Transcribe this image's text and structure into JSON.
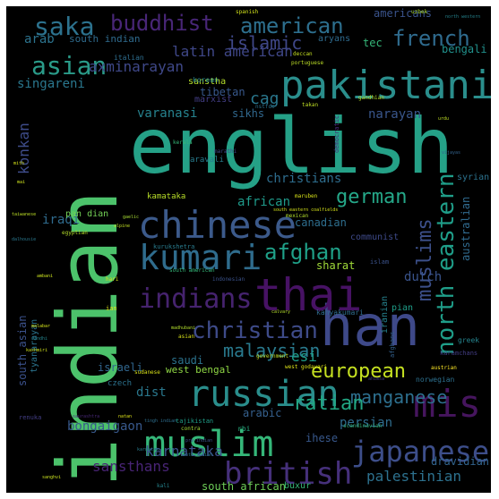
{
  "word_cloud": {
    "words": [
      {
        "text": "english",
        "color": "#25a187"
      },
      {
        "text": "indian",
        "color": "#4cc26b"
      },
      {
        "text": "pakistani",
        "color": "#2a8e8c"
      },
      {
        "text": "han",
        "color": "#3e4989"
      },
      {
        "text": "thai",
        "color": "#471264"
      },
      {
        "text": "chinese",
        "color": "#3c5a8b"
      },
      {
        "text": "kumari",
        "color": "#2f6c8d"
      },
      {
        "text": "russian",
        "color": "#2a8e8c"
      },
      {
        "text": "muslim",
        "color": "#35b779"
      },
      {
        "text": "british",
        "color": "#46307b"
      },
      {
        "text": "japanese",
        "color": "#3d4e8a"
      },
      {
        "text": "mis",
        "color": "#46155e"
      },
      {
        "text": "indians",
        "color": "#46236f"
      },
      {
        "text": "christian",
        "color": "#3e4b89"
      },
      {
        "text": "european",
        "color": "#c5e021"
      },
      {
        "text": "american",
        "color": "#2d6f8e"
      },
      {
        "text": "buddhist",
        "color": "#482677"
      },
      {
        "text": "asian",
        "color": "#2a9b89"
      },
      {
        "text": "saka",
        "color": "#2c728e"
      },
      {
        "text": "french",
        "color": "#2f6b8e"
      },
      {
        "text": "islamic",
        "color": "#3f4788"
      },
      {
        "text": "german",
        "color": "#25a889"
      },
      {
        "text": "afghan",
        "color": "#1fa088"
      },
      {
        "text": "muslims",
        "color": "#3c4f8a"
      },
      {
        "text": "north eastern",
        "color": "#1f9e89"
      },
      {
        "text": "malaysian",
        "color": "#297a8e"
      },
      {
        "text": "manganese",
        "color": "#2d6f8e"
      },
      {
        "text": "ratian",
        "color": "#22a884"
      },
      {
        "text": "karnataka",
        "color": "#3b528b"
      },
      {
        "text": "sansthans",
        "color": "#482475"
      },
      {
        "text": "south african",
        "color": "#6ece58"
      },
      {
        "text": "palestinian",
        "color": "#2d718e"
      },
      {
        "text": "dravidian",
        "color": "#32648e"
      },
      {
        "text": "axminarayan",
        "color": "#3f4889"
      },
      {
        "text": "latin american",
        "color": "#3f4788"
      },
      {
        "text": "arab",
        "color": "#2c738e"
      },
      {
        "text": "south indian",
        "color": "#2f6b8e"
      },
      {
        "text": "singareni",
        "color": "#2a778e"
      },
      {
        "text": "konkan",
        "color": "#3e4c8a"
      },
      {
        "text": "varanasi",
        "color": "#26828e"
      },
      {
        "text": "cag",
        "color": "#2a788e"
      },
      {
        "text": "christians",
        "color": "#2e6d8e"
      },
      {
        "text": "tibetan",
        "color": "#38588c"
      },
      {
        "text": "sikhs",
        "color": "#31688e"
      },
      {
        "text": "narayan",
        "color": "#39568c"
      },
      {
        "text": "dutch",
        "color": "#3a548c"
      },
      {
        "text": "iraqi",
        "color": "#2f6b8e"
      },
      {
        "text": "african",
        "color": "#1f9a8a"
      },
      {
        "text": "canadian",
        "color": "#2e6e8e"
      },
      {
        "text": "australian",
        "color": "#306a8e"
      },
      {
        "text": "bengali",
        "color": "#21918c"
      },
      {
        "text": "americans",
        "color": "#3a538b"
      },
      {
        "text": "tec",
        "color": "#35b779"
      },
      {
        "text": "aryans",
        "color": "#2f6b8e"
      },
      {
        "text": "sharat",
        "color": "#a0da39"
      },
      {
        "text": "communist",
        "color": "#3e4a89"
      },
      {
        "text": "iranian",
        "color": "#26828e"
      },
      {
        "text": "esi",
        "color": "#1f9e89"
      },
      {
        "text": "saudi",
        "color": "#2c738e"
      },
      {
        "text": "west bengal",
        "color": "#8fd744"
      },
      {
        "text": "dist",
        "color": "#2a788e"
      },
      {
        "text": "persian",
        "color": "#2f6c8e"
      },
      {
        "text": "arabic",
        "color": "#35608d"
      },
      {
        "text": "bongaigaon",
        "color": "#38598c"
      },
      {
        "text": "ihese",
        "color": "#38588c"
      },
      {
        "text": "israeli",
        "color": "#31668e"
      },
      {
        "text": "south asian",
        "color": "#3b518b"
      },
      {
        "text": "tyanarayan",
        "color": "#2b748e"
      },
      {
        "text": "pan dian",
        "color": "#73d056"
      },
      {
        "text": "sanstha",
        "color": "#b5de2b"
      },
      {
        "text": "marxist",
        "color": "#433e85"
      },
      {
        "text": "kamataka",
        "color": "#b8de29"
      },
      {
        "text": "aravali",
        "color": "#287d8e"
      },
      {
        "text": "syrian",
        "color": "#2c728e"
      },
      {
        "text": "czech",
        "color": "#2c728e"
      },
      {
        "text": "buxur",
        "color": "#35b779"
      },
      {
        "text": "italian",
        "color": "#2e6d8e"
      },
      {
        "text": "korean",
        "color": "#25848e"
      },
      {
        "text": "kanyakumari",
        "color": "#2f6c8e"
      },
      {
        "text": "pian",
        "color": "#1f9e89"
      },
      {
        "text": "greek",
        "color": "#25848e"
      },
      {
        "text": "norwegian",
        "color": "#2d708e"
      },
      {
        "text": "tajikistan",
        "color": "#1f9e89"
      },
      {
        "text": "west godavari",
        "color": "#dde318"
      },
      {
        "text": "government",
        "color": "#c2df23"
      },
      {
        "text": "islam",
        "color": "#3b528b"
      },
      {
        "text": "rbi",
        "color": "#27ad81"
      },
      {
        "text": "mexican",
        "color": "#b2dd2d"
      },
      {
        "text": "kurukshetra",
        "color": "#297b8e"
      },
      {
        "text": "democratic",
        "color": "#482878"
      },
      {
        "text": "afghans",
        "color": "#34618d"
      },
      {
        "text": "karamchans",
        "color": "#433d84"
      },
      {
        "text": "renuka",
        "color": "#433e85"
      },
      {
        "text": "austrian",
        "color": "#fde725"
      },
      {
        "text": "scandinavian",
        "color": "#35b779"
      },
      {
        "text": "contra",
        "color": "#a5db36"
      },
      {
        "text": "kali",
        "color": "#25848e"
      },
      {
        "text": "egyptian",
        "color": "#b5de2b"
      },
      {
        "text": "maruben",
        "color": "#d8e219"
      },
      {
        "text": "takan",
        "color": "#c0df25"
      },
      {
        "text": "gandhian",
        "color": "#b8de29"
      },
      {
        "text": "marathi",
        "color": "#3f4889"
      },
      {
        "text": "nstfdc",
        "color": "#2c728e"
      },
      {
        "text": "spanish",
        "color": "#d2e21b"
      },
      {
        "text": "portuguese",
        "color": "#bddf26"
      },
      {
        "text": "deccan",
        "color": "#c5e021"
      },
      {
        "text": "kerala",
        "color": "#35b779"
      },
      {
        "text": "hari",
        "color": "#d5e21a"
      },
      {
        "text": "ian",
        "color": "#e2e418"
      },
      {
        "text": "asian",
        "color": "#d8e219"
      },
      {
        "text": "calvary",
        "color": "#b5de2b"
      },
      {
        "text": "indonesian",
        "color": "#3b528b"
      },
      {
        "text": "south american",
        "color": "#35b779"
      },
      {
        "text": "madhubani",
        "color": "#b2dd2d"
      },
      {
        "text": "sudanese",
        "color": "#d8e219"
      },
      {
        "text": "north western",
        "color": "#25848e"
      },
      {
        "text": "south eastern coalfields",
        "color": "#d5e21a"
      },
      {
        "text": "uzbek",
        "color": "#addc30"
      },
      {
        "text": "urdu",
        "color": "#c0df25"
      },
      {
        "text": "taiwanese",
        "color": "#bddf26"
      },
      {
        "text": "tingh indian",
        "color": "#2e6e8e"
      },
      {
        "text": "karnatak",
        "color": "#287c8e"
      },
      {
        "text": "pre-indian",
        "color": "#3b528b"
      },
      {
        "text": "anti-indian",
        "color": "#2b758e"
      },
      {
        "text": "saurashtra",
        "color": "#482878"
      },
      {
        "text": "natan",
        "color": "#dfe318"
      },
      {
        "text": "vijayas",
        "color": "#33638d"
      },
      {
        "text": "sanghvi",
        "color": "#c8e020"
      },
      {
        "text": "gaelic",
        "color": "#a8db34"
      },
      {
        "text": "alpine",
        "color": "#c2df23"
      },
      {
        "text": "ambani",
        "color": "#cae11f"
      },
      {
        "text": "dalhousie",
        "color": "#2a788e"
      },
      {
        "text": "mith",
        "color": "#d5e21a"
      },
      {
        "text": "mai",
        "color": "#cde11d"
      },
      {
        "text": "ahimsa",
        "color": "#433e85"
      },
      {
        "text": "malabar",
        "color": "#d2e21b"
      },
      {
        "text": "sindhi",
        "color": "#25858e"
      },
      {
        "text": "kashmiri",
        "color": "#d0e11c"
      }
    ]
  }
}
